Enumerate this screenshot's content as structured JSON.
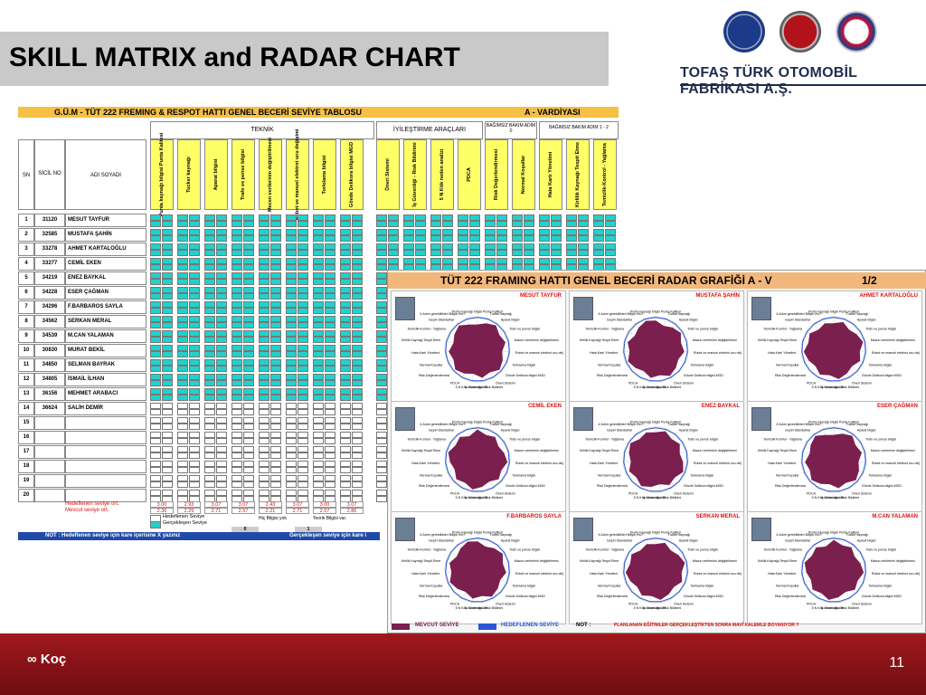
{
  "slide": {
    "title": "SKILL MATRIX and RADAR CHART",
    "company": "TOFAŞ TÜRK OTOMOBİL FABRİKASI A.Ş.",
    "page_number": "11",
    "footer_brand": "Koç"
  },
  "logos": [
    "LANCIA",
    "FIAT",
    "ALFA ROMEO"
  ],
  "matrix": {
    "title": "G.Ü.M - TÜT 222 FREMING & RESPOT  HATTI  GENEL BECERİ SEVİYE TABLOSU",
    "shift": "A - VARDİYASI",
    "groups": {
      "teknik": "TEKNİK",
      "iyilestirme": "İYİLEŞTİRME   ARAÇLARI",
      "bagimsiz0": "BAĞIMSIZ BAKIM ADIM 0",
      "bagimsiz12": "BAĞIMSIZ BAKIM ADIM 1 - 2"
    },
    "cols": {
      "sn": "SN",
      "sicil": "SİCİL NO",
      "adi": "ADI SOYADI"
    },
    "skills": [
      "Punta kaynağı bilgisi Punta Kalitesi",
      "Tucker kaynağı",
      "Aparat bilgisi",
      "Trafo ve pense bilgisi",
      "Mecen verilerinin değiştirilmesi",
      "Robot ve manuel elektrot ucu değişimi",
      "Torkılama bilgisi",
      "Gövde Delikora bilgisi MGD",
      "Öneri Sistemi",
      "İş Güvenliği - Risk Bildirimi",
      "5 N Kök neden analizi",
      "PDCA",
      "Risk Değerlendirmesi",
      "Normal Koşullar",
      "Hata Kartı Yönetimi",
      "Kirlilik Kaynağı Tespit Etme",
      "Temizlik-Kontrol - Yağlama"
    ],
    "rows": [
      {
        "sn": "1",
        "sicil": "31120",
        "name": "MESUT TAYFUR"
      },
      {
        "sn": "2",
        "sicil": "32585",
        "name": "MUSTAFA ŞAHİN"
      },
      {
        "sn": "3",
        "sicil": "33278",
        "name": "AHMET KARTALOĞLU"
      },
      {
        "sn": "4",
        "sicil": "33277",
        "name": "CEMİL EKEN"
      },
      {
        "sn": "5",
        "sicil": "34219",
        "name": "ENEZ BAYKAL"
      },
      {
        "sn": "6",
        "sicil": "34228",
        "name": "ESER ÇAĞMAN"
      },
      {
        "sn": "7",
        "sicil": "34296",
        "name": "F.BARBAROS SAYLA"
      },
      {
        "sn": "8",
        "sicil": "34562",
        "name": "SERKAN MERAL"
      },
      {
        "sn": "9",
        "sicil": "34539",
        "name": "M.CAN YALAMAN"
      },
      {
        "sn": "10",
        "sicil": "30830",
        "name": "MURAT BEKİL"
      },
      {
        "sn": "11",
        "sicil": "34850",
        "name": "SELMAN BAYRAK"
      },
      {
        "sn": "12",
        "sicil": "34805",
        "name": "İSMAİL İLHAN"
      },
      {
        "sn": "13",
        "sicil": "36156",
        "name": "MEHMET ARABACI"
      },
      {
        "sn": "14",
        "sicil": "36624",
        "name": "SALİH DEMİR"
      },
      {
        "sn": "15",
        "sicil": "",
        "name": ""
      },
      {
        "sn": "16",
        "sicil": "",
        "name": ""
      },
      {
        "sn": "17",
        "sicil": "",
        "name": ""
      },
      {
        "sn": "18",
        "sicil": "",
        "name": ""
      },
      {
        "sn": "19",
        "sicil": "",
        "name": ""
      },
      {
        "sn": "20",
        "sicil": "",
        "name": ""
      }
    ],
    "target_label": "Hedeflenen seviye ort.",
    "actual_label": "Mevcut seviye ort.",
    "target_values": [
      "3.00",
      "2.93",
      "3.07",
      "3.07",
      "2.43",
      "3.07",
      "3.00",
      "3.07"
    ],
    "actual_values": [
      "2.36",
      "2.29",
      "2.71",
      "2.57",
      "2.21",
      "2.71",
      "2.57",
      "2.86"
    ],
    "legend": {
      "target": "Hedeflenen Seviye",
      "actual": "Gerçekleşen Seviye",
      "hic": "Hiç Bilgisi yok",
      "teorik": "Teorik Bilgisi var."
    },
    "legend_values": [
      "0",
      "1"
    ],
    "note": "NOT : Hedeflenen seviye için kare içerisine   X    yazınız",
    "note2": "Gerçekleşen seviye için kare i"
  },
  "radar": {
    "title": "TÜT 222 FRAMING HATTI GENEL  BECERİ RADAR GRAFİĞİ  A - V",
    "page": "1/2",
    "people": [
      "MESUT TAYFUR",
      "MUSTAFA ŞAHİN",
      "AHMET KARTALOĞLU",
      "CEMİL EKEN",
      "ENEZ BAYKAL",
      "ESER ÇAĞMAN",
      "F.BARBAROS SAYLA",
      "SERKAN MERAL",
      "M.CAN YALAMAN"
    ],
    "axis_labels": [
      "Punta kaynağı bilgisi Punta Kalitesi",
      "Tucker kaynağı",
      "Aparat bilgisi",
      "Trafo ve pense bilgisi",
      "Macun verilerinin değiştirilmesi",
      "Robot ve manuel elektrot ucu değişimi",
      "Torkılama bilgisi",
      "Gövde Delikora bilgisi MGD",
      "Öneri Sistemi",
      "İş Güvenliği - Risk Bildirimi",
      "5 N Kök neden analizi",
      "PDCA",
      "Risk Değerlendirmesi",
      "Normal Koşullar",
      "Hata Kartı Yönetimi",
      "Kirlilik Kaynağı Tespit Etme",
      "Temizlik-Kontrol - Yağlama",
      "Gepiri Standartlar",
      "4.Adım gereklilikleri Biliyor mu?"
    ],
    "legend": {
      "mevcut": "MEVCUT SEVİYE",
      "hedef": "HEDEFLENEN SEVİYE",
      "not_label": "NOT :",
      "not_text": "PLANLANAN EĞİTİMLER GERÇEKLEŞTİKTEN SONRA MAVİ KALEMLE BOYANIYOR !!"
    },
    "colors": {
      "fill": "#7b1f4f",
      "target": "#2a57d6",
      "title_bg": "#f2b77a"
    }
  }
}
